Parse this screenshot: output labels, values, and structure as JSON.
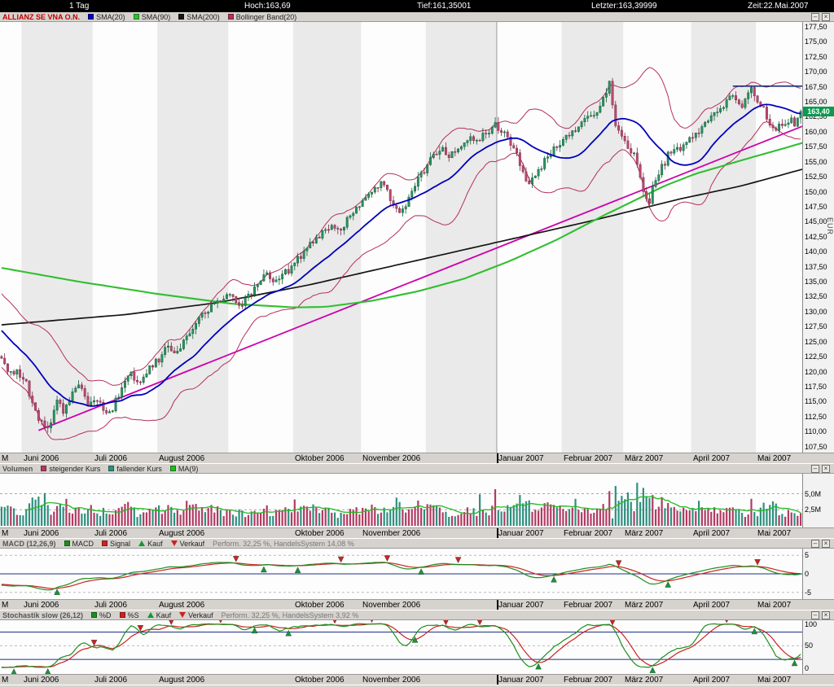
{
  "top_bar": {
    "period": "1 Tag",
    "high": "Hoch:163,69",
    "low": "Tief:161,35001",
    "last": "Letzter:163,39999",
    "time": "Zeit:22.Mai.2007"
  },
  "panels": {
    "price": {
      "title": "ALLIANZ SE VNA O.N.",
      "axis_unit": "EUR",
      "legend": [
        {
          "label": "SMA(20)",
          "color": "#0000bb",
          "shape": "square",
          "icon": "sma20-swatch"
        },
        {
          "label": "SMA(90)",
          "color": "#2fbf2f",
          "shape": "square",
          "icon": "sma90-swatch"
        },
        {
          "label": "SMA(200)",
          "color": "#16161a",
          "shape": "square",
          "icon": "sma200-swatch"
        },
        {
          "label": "Bollinger Band(20)",
          "color": "#b5305a",
          "shape": "square",
          "icon": "bollinger-swatch"
        }
      ],
      "ticks": [
        "177,50",
        "175,00",
        "172,50",
        "170,00",
        "167,50",
        "165,00",
        "162,50",
        "160,00",
        "157,50",
        "155,00",
        "152,50",
        "150,00",
        "147,50",
        "145,00",
        "142,50",
        "140,00",
        "137,50",
        "135,00",
        "132,50",
        "130,00",
        "127,50",
        "125,00",
        "122,50",
        "120,00",
        "117,50",
        "115,00",
        "112,50",
        "110,00",
        "107,50"
      ],
      "last_price_badge": {
        "text": "163,40",
        "value": 163.4,
        "color": "#0a9a50"
      },
      "window_icons": [
        "minimize-icon",
        "close-icon"
      ]
    },
    "volume": {
      "title": "Volumen",
      "legend": [
        {
          "label": "steigender Kurs",
          "color": "#b03b63",
          "shape": "square",
          "icon": "rising-volume-swatch"
        },
        {
          "label": "fallender Kurs",
          "color": "#2f8f7f",
          "shape": "square",
          "icon": "falling-volume-swatch"
        },
        {
          "label": "MA(9)",
          "color": "#22bb22",
          "shape": "square",
          "icon": "volume-ma-swatch"
        }
      ],
      "ticks": [
        "5,0M",
        "2,5M"
      ]
    },
    "macd": {
      "title": "MACD (12,26,9)",
      "legend": [
        {
          "label": "MACD",
          "color": "#1d8f1d",
          "shape": "square",
          "icon": "macd-swatch"
        },
        {
          "label": "Signal",
          "color": "#cc2222",
          "shape": "square",
          "icon": "signal-swatch"
        },
        {
          "label": "Kauf",
          "color": "#119933",
          "shape": "tri-up",
          "icon": "buy-marker-icon"
        },
        {
          "label": "Verkauf",
          "color": "#cc2222",
          "shape": "tri-down",
          "icon": "sell-marker-icon"
        }
      ],
      "performance": "Perform. 32,25 %, HandelsSystem 14,08 %",
      "ticks": [
        "5",
        "0",
        "-5"
      ]
    },
    "stoch": {
      "title": "Stochastik slow (26,12)",
      "legend": [
        {
          "label": "%D",
          "color": "#1d8f1d",
          "shape": "square",
          "icon": "percent-d-swatch"
        },
        {
          "label": "%S",
          "color": "#cc2222",
          "shape": "square",
          "icon": "percent-s-swatch"
        },
        {
          "label": "Kauf",
          "color": "#119933",
          "shape": "tri-up",
          "icon": "buy-marker-icon"
        },
        {
          "label": "Verkauf",
          "color": "#cc2222",
          "shape": "tri-down",
          "icon": "sell-marker-icon"
        }
      ],
      "performance": "Perform. 32,25 %, HandelsSystem 3,92 %",
      "ticks": [
        "100",
        "50",
        "0"
      ]
    }
  },
  "timeline": {
    "year_separator_day": 161,
    "months": [
      {
        "label": "M",
        "start": 0,
        "shade": false
      },
      {
        "label": "Juni 2006",
        "start": 7,
        "shade": true
      },
      {
        "label": "Juli 2006",
        "start": 30,
        "shade": false
      },
      {
        "label": "August 2006",
        "start": 51,
        "shade": true
      },
      {
        "label": "",
        "start": 74,
        "shade": false
      },
      {
        "label": "Oktober 2006",
        "start": 95,
        "shade": true
      },
      {
        "label": "November 2006",
        "start": 117,
        "shade": false
      },
      {
        "label": "",
        "start": 138,
        "shade": true
      },
      {
        "label": "Januar 2007",
        "start": 161,
        "shade": false
      },
      {
        "label": "Februar 2007",
        "start": 182,
        "shade": true
      },
      {
        "label": "März 2007",
        "start": 202,
        "shade": false
      },
      {
        "label": "April 2007",
        "start": 224,
        "shade": true
      },
      {
        "label": "Mai 2007",
        "start": 245,
        "shade": false
      }
    ]
  },
  "colors": {
    "stripe": "#eaeaea",
    "candle_up": "#2a9461",
    "wick_up": "#145c39",
    "candle_down": "#bb4a72",
    "wick_down": "#7d2747",
    "sma20": "#0000bb",
    "sma90": "#2fbf2f",
    "sma200": "#141414",
    "bollinger": "#b5305a",
    "trend": "#cc00aa",
    "navy": "#1a2f8a",
    "vol_up": "#b03b63",
    "vol_down": "#2f8f7f",
    "vol_ma": "#22bb22",
    "macd": "#1d8f1d",
    "signal": "#cc2222",
    "buy": "#119933",
    "sell": "#cc2222"
  },
  "chart_data": {
    "type": "candlestick",
    "instrument": "ALLIANZ SE VNA O.N.",
    "interval": "1 Tag",
    "last": {
      "close": 163.4,
      "high": 163.69,
      "low": 161.35
    },
    "seed": 1234,
    "prehistory_days": 200,
    "total_days": 260,
    "price_axis": {
      "min": 107.5,
      "max": 177.5,
      "step": 2.5,
      "plot_min": 106.5,
      "plot_max": 178.3,
      "unit": "EUR"
    },
    "price_anchors": [
      [
        0,
        122
      ],
      [
        2,
        119.5
      ],
      [
        5,
        120.5
      ],
      [
        8,
        118
      ],
      [
        11,
        113.5
      ],
      [
        14,
        110.3
      ],
      [
        16,
        112
      ],
      [
        18,
        115.5
      ],
      [
        20,
        113
      ],
      [
        23,
        116.5
      ],
      [
        26,
        117.5
      ],
      [
        28,
        114.5
      ],
      [
        31,
        115.5
      ],
      [
        34,
        112.5
      ],
      [
        36,
        114
      ],
      [
        39,
        117
      ],
      [
        42,
        119.5
      ],
      [
        45,
        118
      ],
      [
        48,
        120.5
      ],
      [
        51,
        122
      ],
      [
        54,
        124.5
      ],
      [
        57,
        123
      ],
      [
        60,
        126
      ],
      [
        63,
        128
      ],
      [
        66,
        130
      ],
      [
        70,
        131.5
      ],
      [
        74,
        133
      ],
      [
        77,
        131
      ],
      [
        80,
        132.5
      ],
      [
        83,
        134.5
      ],
      [
        86,
        136.5
      ],
      [
        89,
        135
      ],
      [
        92,
        136.5
      ],
      [
        95,
        138
      ],
      [
        98,
        140
      ],
      [
        101,
        141.5
      ],
      [
        104,
        143.5
      ],
      [
        107,
        144.5
      ],
      [
        110,
        143
      ],
      [
        113,
        146.5
      ],
      [
        117,
        148.5
      ],
      [
        120,
        150
      ],
      [
        123,
        151.5
      ],
      [
        126,
        149
      ],
      [
        129,
        146.5
      ],
      [
        131,
        147.5
      ],
      [
        134,
        151
      ],
      [
        138,
        154.5
      ],
      [
        141,
        156.5
      ],
      [
        143,
        157.5
      ],
      [
        145,
        156
      ],
      [
        148,
        157.5
      ],
      [
        151,
        159
      ],
      [
        154,
        158
      ],
      [
        157,
        160
      ],
      [
        160,
        161
      ],
      [
        163,
        160
      ],
      [
        166,
        157.5
      ],
      [
        169,
        153.5
      ],
      [
        171,
        151
      ],
      [
        173,
        152.5
      ],
      [
        176,
        155
      ],
      [
        179,
        157
      ],
      [
        182,
        158.5
      ],
      [
        185,
        160
      ],
      [
        188,
        161.5
      ],
      [
        191,
        163
      ],
      [
        194,
        164
      ],
      [
        196,
        166.5
      ],
      [
        197,
        168.5
      ],
      [
        198,
        164
      ],
      [
        199,
        160.5
      ],
      [
        201,
        159
      ],
      [
        203,
        157.5
      ],
      [
        205,
        156.5
      ],
      [
        207,
        152
      ],
      [
        208,
        150
      ],
      [
        210,
        148.5
      ],
      [
        212,
        152
      ],
      [
        214,
        154
      ],
      [
        216,
        156
      ],
      [
        219,
        157
      ],
      [
        222,
        158
      ],
      [
        224,
        159
      ],
      [
        227,
        161
      ],
      [
        230,
        162.5
      ],
      [
        233,
        163.5
      ],
      [
        236,
        166
      ],
      [
        238,
        165
      ],
      [
        240,
        164.5
      ],
      [
        242,
        166.5
      ],
      [
        243,
        167
      ],
      [
        245,
        165.5
      ],
      [
        247,
        163.5
      ],
      [
        249,
        161.5
      ],
      [
        251,
        160.5
      ],
      [
        253,
        161.5
      ],
      [
        255,
        162
      ],
      [
        257,
        161.5
      ],
      [
        259,
        163.4
      ]
    ],
    "pre_anchors": [
      [
        -200,
        112
      ],
      [
        -180,
        115
      ],
      [
        -160,
        118.5
      ],
      [
        -140,
        122
      ],
      [
        -120,
        127
      ],
      [
        -100,
        131
      ],
      [
        -80,
        135
      ],
      [
        -60,
        138
      ],
      [
        -45,
        139
      ],
      [
        -30,
        137
      ],
      [
        -20,
        133
      ],
      [
        -12,
        128
      ],
      [
        -6,
        125
      ],
      [
        -1,
        122.3
      ]
    ],
    "sma90_anchors": [
      [
        0,
        137.3
      ],
      [
        25,
        135
      ],
      [
        50,
        133
      ],
      [
        75,
        131.3
      ],
      [
        95,
        130.7
      ],
      [
        105,
        130.8
      ],
      [
        120,
        131.8
      ],
      [
        135,
        133.4
      ],
      [
        150,
        135.5
      ],
      [
        165,
        138.5
      ],
      [
        180,
        142
      ],
      [
        195,
        146
      ],
      [
        205,
        148.5
      ],
      [
        215,
        151
      ],
      [
        225,
        153
      ],
      [
        235,
        154.5
      ],
      [
        245,
        156
      ],
      [
        252,
        157
      ],
      [
        260,
        158.2
      ]
    ],
    "sma200_anchors": [
      [
        0,
        127.8
      ],
      [
        40,
        129.5
      ],
      [
        70,
        131.5
      ],
      [
        100,
        134.5
      ],
      [
        130,
        138
      ],
      [
        160,
        141.5
      ],
      [
        190,
        145
      ],
      [
        220,
        148.8
      ],
      [
        240,
        151
      ],
      [
        260,
        153.8
      ]
    ],
    "trend_line": {
      "from_day": 12,
      "from_price": 110.2,
      "to_day": 260,
      "to_price": 161.0
    },
    "horizontal_line": {
      "from_day": 237,
      "to_day": 260,
      "price": 167.6
    },
    "volume_axis": {
      "plot_max": 7.6,
      "ticks": [
        {
          "v": 5,
          "t": "5,0M"
        },
        {
          "v": 2.5,
          "t": "2,5M"
        }
      ]
    },
    "volume_spikes": [
      [
        10,
        4.4
      ],
      [
        14,
        5.1
      ],
      [
        21,
        4.2
      ],
      [
        60,
        3.9
      ],
      [
        95,
        4.1
      ],
      [
        128,
        4.4
      ],
      [
        155,
        4.9
      ],
      [
        160,
        5.7
      ],
      [
        168,
        4.8
      ],
      [
        186,
        4.2
      ],
      [
        197,
        5.4
      ],
      [
        199,
        6.2
      ],
      [
        203,
        5.2
      ],
      [
        206,
        6.7
      ],
      [
        208,
        5.9
      ],
      [
        211,
        4.8
      ],
      [
        226,
        3.9
      ],
      [
        243,
        4.2
      ],
      [
        247,
        3.6
      ]
    ],
    "macd_axis": {
      "plot_max": 6.8,
      "ticks": [
        {
          "v": 5,
          "t": "5"
        },
        {
          "v": 0,
          "t": "0"
        },
        {
          "v": -5,
          "t": "-5"
        }
      ]
    },
    "stoch_axis": {
      "ticks": [
        {
          "v": 100,
          "t": "100"
        },
        {
          "v": 50,
          "t": "50"
        },
        {
          "v": 0,
          "t": "0"
        }
      ],
      "ref_lines": [
        80,
        20
      ]
    }
  }
}
